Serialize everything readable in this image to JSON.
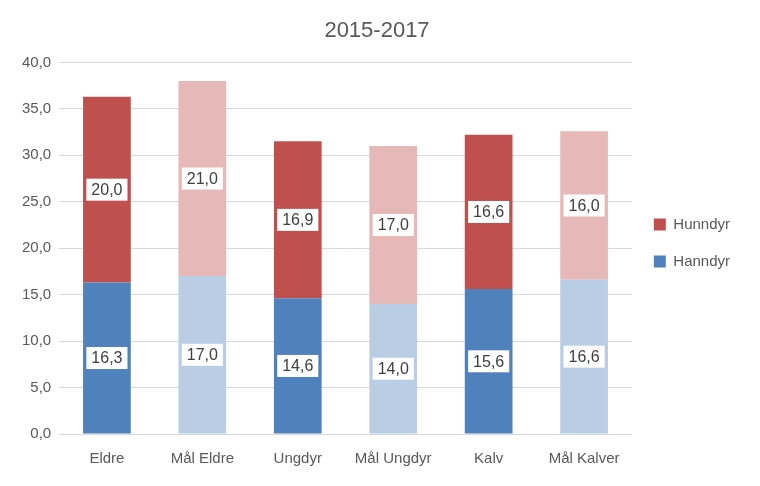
{
  "chart_data": {
    "type": "bar",
    "title": "2015-2017",
    "categories": [
      "Eldre",
      "Mål Eldre",
      "Ungdyr",
      "Mål Ungdyr",
      "Kalv",
      "Mål Kalver"
    ],
    "series": [
      {
        "name": "Hanndyr",
        "color": "#4f81bd",
        "colors": [
          "#4f81bd",
          "#b9cde5",
          "#4f81bd",
          "#b9cde5",
          "#4f81bd",
          "#b9cde5"
        ],
        "values": [
          16.3,
          17.0,
          14.6,
          14.0,
          15.6,
          16.6
        ],
        "value_labels": [
          "16,3",
          "17,0",
          "14,6",
          "14,0",
          "15,6",
          "16,6"
        ]
      },
      {
        "name": "Hunndyr",
        "color": "#c0504d",
        "colors": [
          "#c0504d",
          "#e6b9b8",
          "#c0504d",
          "#e6b9b8",
          "#c0504d",
          "#e6b9b8"
        ],
        "values": [
          20.0,
          21.0,
          16.9,
          17.0,
          16.6,
          16.0
        ],
        "value_labels": [
          "20,0",
          "21,0",
          "16,9",
          "17,0",
          "16,6",
          "16,0"
        ]
      }
    ],
    "stacked": true,
    "data_labels": true,
    "legend": "right",
    "grid": true,
    "ylim": [
      0,
      40
    ],
    "yticks": [
      {
        "value": 0,
        "label": "0,0"
      },
      {
        "value": 5,
        "label": "5,0"
      },
      {
        "value": 10,
        "label": "10,0"
      },
      {
        "value": 15,
        "label": "15,0"
      },
      {
        "value": 20,
        "label": "20,0"
      },
      {
        "value": 25,
        "label": "25,0"
      },
      {
        "value": 30,
        "label": "30,0"
      },
      {
        "value": 35,
        "label": "35,0"
      },
      {
        "value": 40,
        "label": "40,0"
      }
    ]
  }
}
